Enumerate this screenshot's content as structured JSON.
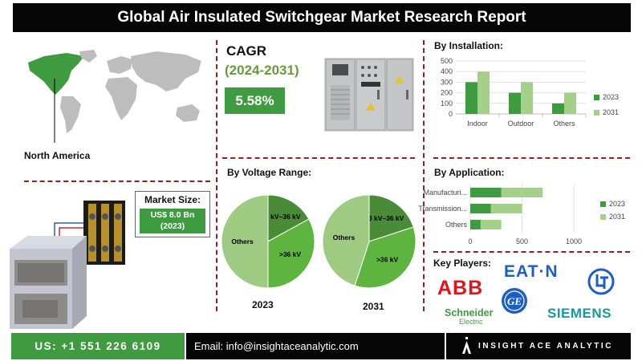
{
  "header": {
    "title": "Global Air Insulated Switchgear Market Research Report"
  },
  "region": {
    "label": "North America",
    "highlight_color": "#3f9b3f"
  },
  "market_size": {
    "title": "Market Size:",
    "value": "US$ 8.0 Bn",
    "year": "(2023)"
  },
  "cagr": {
    "title": "CAGR",
    "years": "(2024-2031)",
    "value": "5.58%"
  },
  "sections": {
    "installation": "By Installation:",
    "voltage": "By Voltage Range:",
    "application": "By Application:",
    "key_players": "Key Players:"
  },
  "colors": {
    "y2023": "#3f9b3f",
    "y2031": "#a4d08a",
    "pie_dark": "#4a8b38",
    "pie_mid": "#5db540",
    "pie_light": "#9fca82"
  },
  "key_players": {
    "abb": "ABB",
    "eaton": "EAT·N",
    "schneider": "Schneider",
    "schneider_sub": "Electric",
    "siemens": "SIEMENS",
    "ge": "GE",
    "lt": "L&T"
  },
  "footer": {
    "phone": "US: +1 551 226 6109",
    "email": "Email: info@insightaceanalytic.com",
    "brand": "INSIGHT ACE ANALYTIC"
  },
  "chart_data": [
    {
      "type": "bar",
      "title": "By Installation:",
      "categories": [
        "Indoor",
        "Outdoor",
        "Others"
      ],
      "series": [
        {
          "name": "2023",
          "values": [
            300,
            200,
            100
          ]
        },
        {
          "name": "2031",
          "values": [
            400,
            300,
            200
          ]
        }
      ],
      "ylim": [
        0,
        500
      ],
      "yticks": [
        0,
        100,
        200,
        300,
        400,
        500
      ],
      "legend": "right"
    },
    {
      "type": "pie",
      "title": "By Voltage Range:",
      "year": "2023",
      "slices": [
        {
          "label": "3 kV–36 kV",
          "value": 17
        },
        {
          "label": ">36 kV",
          "value": 33
        },
        {
          "label": "Others",
          "value": 50
        }
      ]
    },
    {
      "type": "pie",
      "title": "By Voltage Range:",
      "year": "2031",
      "slices": [
        {
          "label": "3 kV–36 kV",
          "value": 20
        },
        {
          "label": ">36 kV",
          "value": 35
        },
        {
          "label": "Others",
          "value": 45
        }
      ]
    },
    {
      "type": "bar",
      "orientation": "horizontal",
      "stacked": true,
      "title": "By Application:",
      "categories": [
        "Manufacturi...",
        "Transmission...",
        "Others"
      ],
      "series": [
        {
          "name": "2023",
          "values": [
            300,
            200,
            100
          ]
        },
        {
          "name": "2031",
          "values": [
            400,
            300,
            200
          ]
        }
      ],
      "xlim": [
        0,
        1000
      ],
      "xticks": [
        0,
        500,
        1000
      ],
      "legend": "right"
    }
  ]
}
